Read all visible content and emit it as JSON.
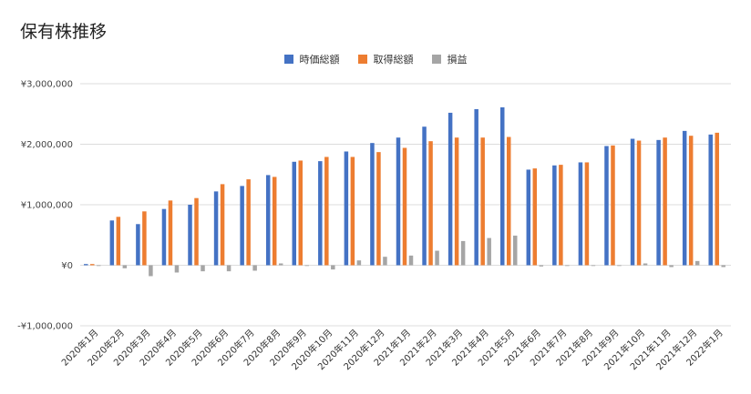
{
  "title": "保有株推移",
  "colors": {
    "market_value": "#4472c4",
    "cost": "#ed7d31",
    "profit": "#a5a5a5",
    "grid": "#dcdcdc"
  },
  "chart_data": {
    "type": "bar",
    "title": "保有株推移",
    "xlabel": "",
    "ylabel": "",
    "ylim": [
      -1000000,
      3000000
    ],
    "yticks": [
      3000000,
      2000000,
      1000000,
      0,
      -1000000
    ],
    "ytick_labels": [
      "¥3,000,000",
      "¥2,000,000",
      "¥1,000,000",
      "¥0",
      "-¥1,000,000"
    ],
    "grid": true,
    "legend_position": "top",
    "categories": [
      "2020年1月",
      "2020年2月",
      "2020年3月",
      "2020年4月",
      "2020年5月",
      "2020年6月",
      "2020年7月",
      "2020年8月",
      "2020年9月",
      "2020年10月",
      "2020年11月",
      "2020年12月",
      "2021年1月",
      "2021年2月",
      "2021年3月",
      "2021年4月",
      "2021年5月",
      "2021年6月",
      "2021年7月",
      "2021年8月",
      "2021年9月",
      "2021年10月",
      "2021年11月",
      "2021年12月",
      "2022年1月"
    ],
    "series": [
      {
        "name": "時価総額",
        "values": [
          20000,
          740000,
          680000,
          930000,
          1000000,
          1220000,
          1310000,
          1490000,
          1710000,
          1720000,
          1880000,
          2020000,
          2110000,
          2290000,
          2520000,
          2580000,
          2610000,
          1580000,
          1650000,
          1700000,
          1970000,
          2090000,
          2070000,
          2220000,
          2160000
        ]
      },
      {
        "name": "取得総額",
        "values": [
          20000,
          800000,
          890000,
          1070000,
          1110000,
          1340000,
          1420000,
          1460000,
          1730000,
          1790000,
          1790000,
          1870000,
          1940000,
          2050000,
          2110000,
          2110000,
          2120000,
          1600000,
          1660000,
          1700000,
          1980000,
          2060000,
          2110000,
          2140000,
          2190000
        ]
      },
      {
        "name": "損益",
        "values": [
          0,
          -50000,
          -180000,
          -120000,
          -100000,
          -100000,
          -90000,
          30000,
          -10000,
          -70000,
          80000,
          140000,
          160000,
          240000,
          400000,
          450000,
          490000,
          -20000,
          -10000,
          0,
          -10000,
          30000,
          -30000,
          70000,
          -30000
        ]
      }
    ]
  }
}
